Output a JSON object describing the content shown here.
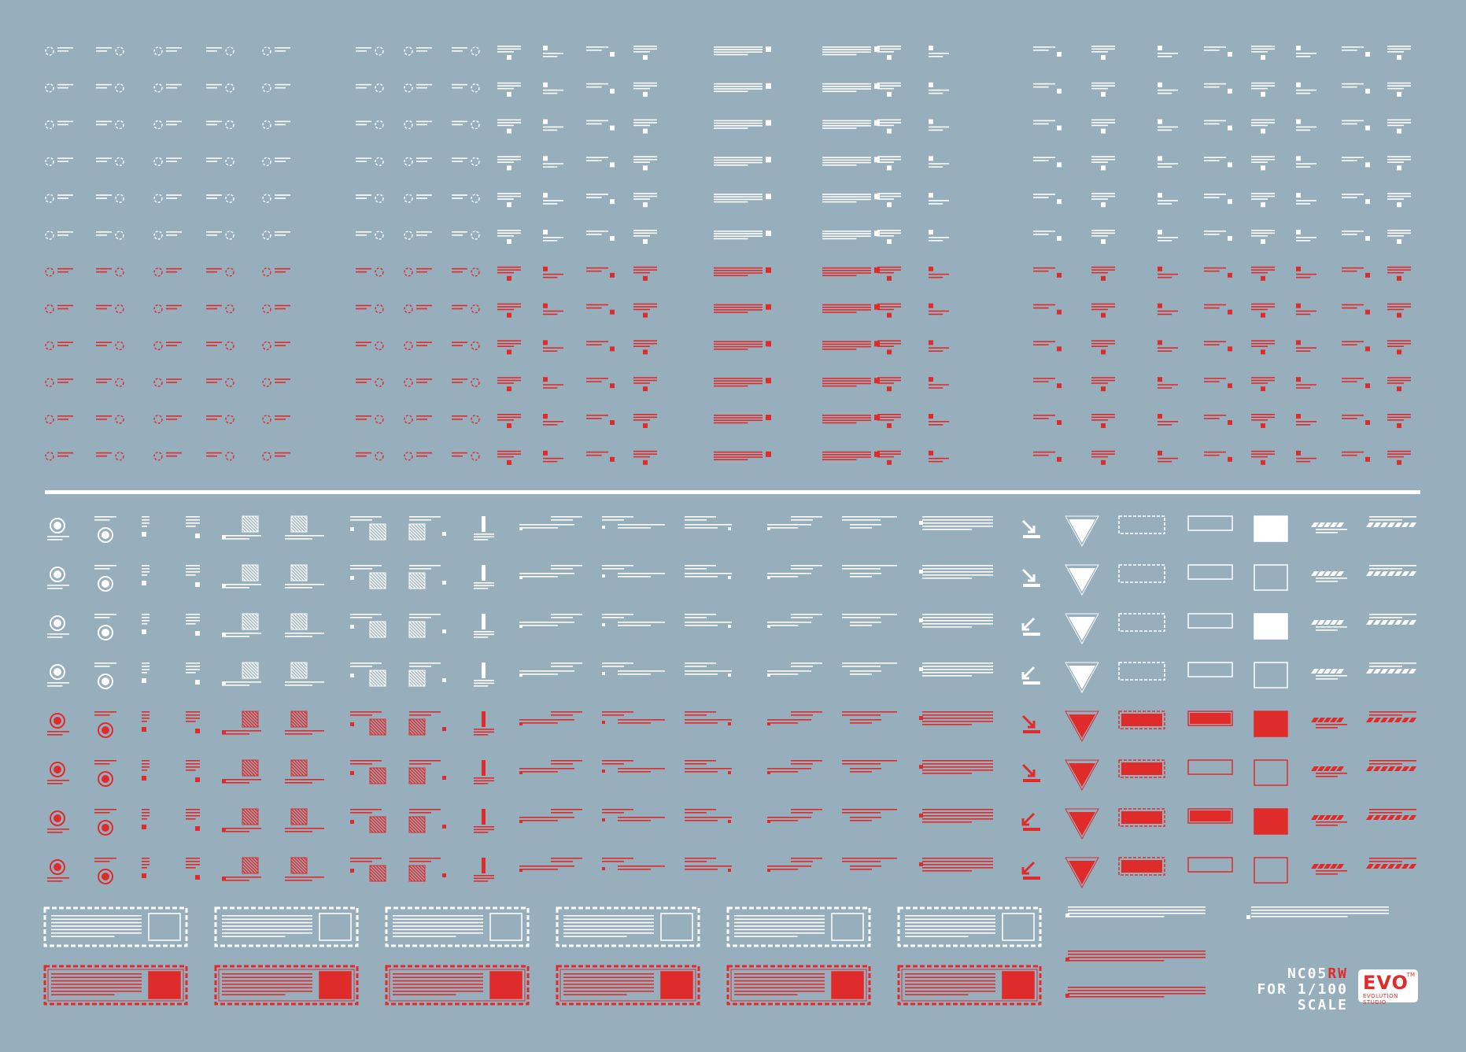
{
  "colors": {
    "background": "#97aebd",
    "white": "#ffffff",
    "red": "#e02b2b"
  },
  "brand": {
    "code_prefix": "NC05",
    "code_accent": "RW",
    "scale_line1": "FOR 1/100",
    "scale_line2": "SCALE",
    "logo_text": "EVO",
    "logo_tm": "TM",
    "logo_sub": "EVOLUTION STUDIO"
  },
  "sheet": {
    "upper_row_count": 12,
    "upper_white_rows": 6,
    "lower_row_count": 8,
    "lower_white_rows": 4,
    "banner_count_per_row": 6
  }
}
